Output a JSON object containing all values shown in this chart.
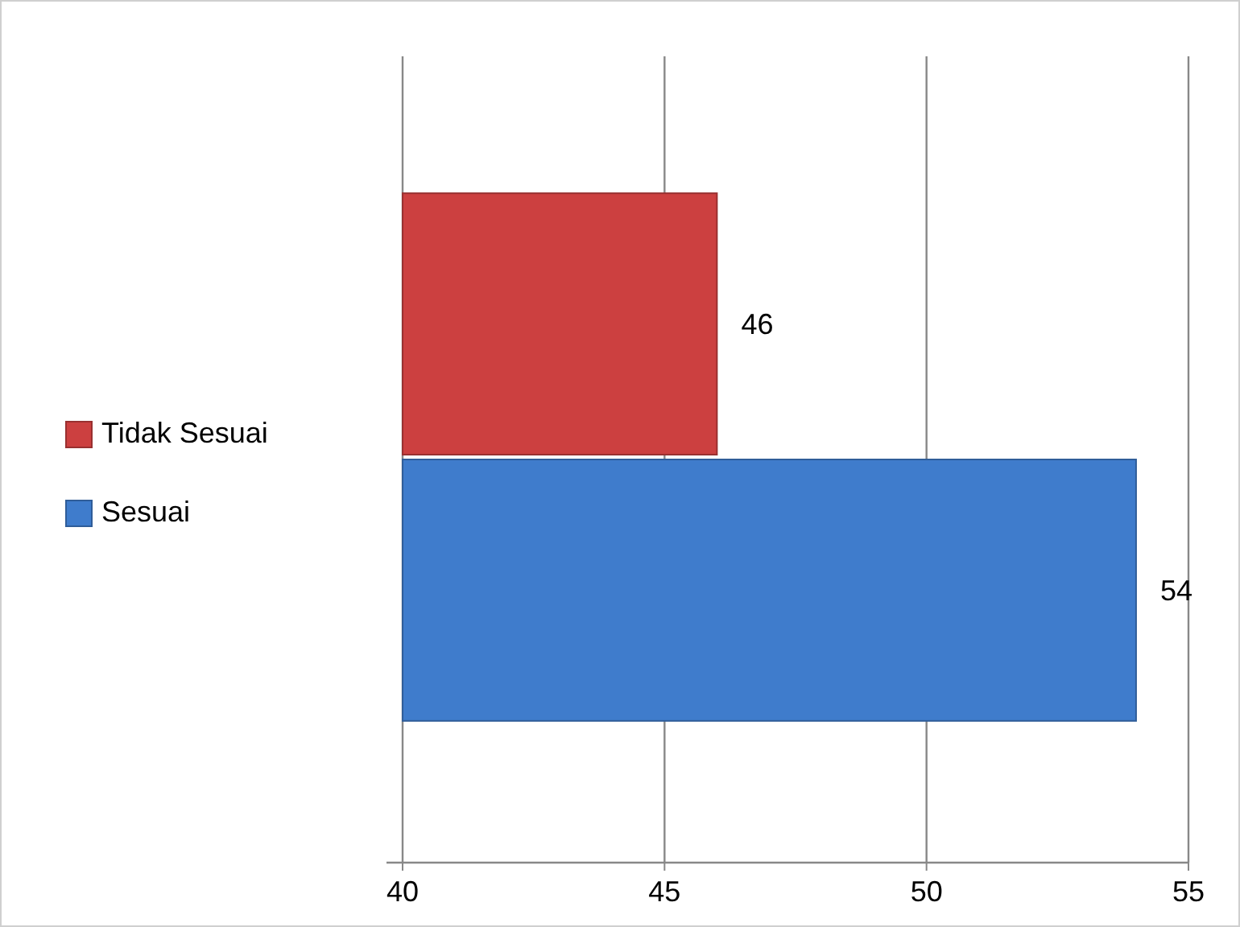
{
  "chart_data": {
    "type": "bar",
    "orientation": "horizontal",
    "categories": [
      null
    ],
    "series": [
      {
        "name": "Tidak Sesuai",
        "color": "#cc4040",
        "values": [
          46
        ]
      },
      {
        "name": "Sesuai",
        "color": "#3f7ccc",
        "values": [
          54
        ]
      }
    ],
    "xlim": [
      40,
      55
    ],
    "xticks": [
      40,
      45,
      50,
      55
    ],
    "grid": "x",
    "legend": "left",
    "data_labels": true
  }
}
